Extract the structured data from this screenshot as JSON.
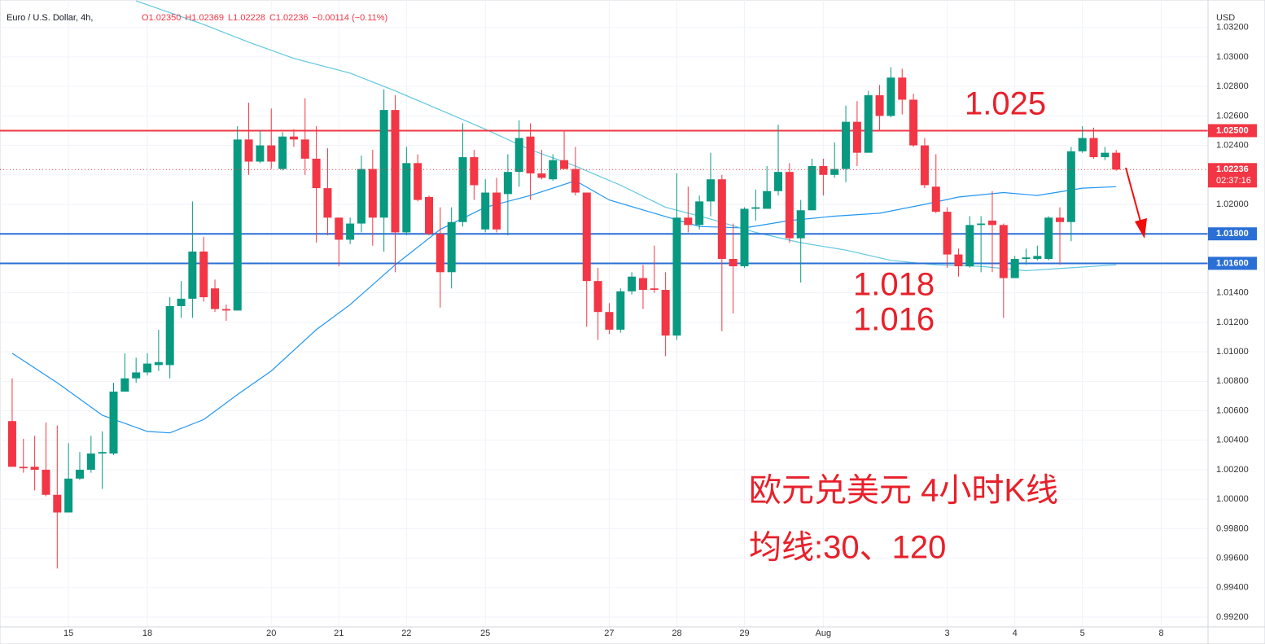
{
  "header": {
    "symbol": "Euro / U.S. Dollar, 4h,",
    "ohlc": [
      "O1.02350",
      "H1.02369",
      "L1.02228",
      "C1.02236",
      "−0.00114 (−0.11%)"
    ],
    "currency": "USD"
  },
  "annotations": [
    "1.025",
    "1.018",
    "1.016",
    "欧元兑美元 4小时K线",
    "均线:30、120"
  ],
  "chart_data": {
    "type": "candlestick",
    "up_color": "#089981",
    "down_color": "#f23645",
    "grid": true,
    "xlim": [
      -1.08,
      106.15
    ],
    "ylim": [
      0.99134,
      1.03342
    ],
    "xticks": [
      {
        "value": 5,
        "label": "15"
      },
      {
        "value": 12,
        "label": "18"
      },
      {
        "value": 23,
        "label": "20"
      },
      {
        "value": 29,
        "label": "21"
      },
      {
        "value": 35,
        "label": "22"
      },
      {
        "value": 42,
        "label": "25"
      },
      {
        "value": 53,
        "label": "27"
      },
      {
        "value": 59,
        "label": "28"
      },
      {
        "value": 65,
        "label": "29"
      },
      {
        "value": 72,
        "label": "Aug"
      },
      {
        "value": 83,
        "label": "3"
      },
      {
        "value": 89,
        "label": "4"
      },
      {
        "value": 95,
        "label": "5"
      },
      {
        "value": 102,
        "label": "8"
      }
    ],
    "yticks": [
      {
        "value": 0.992,
        "label": "0.99200"
      },
      {
        "value": 0.994,
        "label": "0.99400"
      },
      {
        "value": 0.996,
        "label": "0.99600"
      },
      {
        "value": 0.998,
        "label": "0.99800"
      },
      {
        "value": 1.0,
        "label": "1.00000"
      },
      {
        "value": 1.002,
        "label": "1.00200"
      },
      {
        "value": 1.004,
        "label": "1.00400"
      },
      {
        "value": 1.006,
        "label": "1.00600"
      },
      {
        "value": 1.008,
        "label": "1.00800"
      },
      {
        "value": 1.01,
        "label": "1.01000"
      },
      {
        "value": 1.012,
        "label": "1.01200"
      },
      {
        "value": 1.014,
        "label": "1.01400"
      },
      {
        "value": 1.016,
        "label": "1.01600"
      },
      {
        "value": 1.018,
        "label": "1.01800"
      },
      {
        "value": 1.02,
        "label": "1.02000"
      },
      {
        "value": 1.022,
        "label": "1.02200"
      },
      {
        "value": 1.024,
        "label": "1.02400"
      },
      {
        "value": 1.026,
        "label": "1.02600"
      },
      {
        "value": 1.028,
        "label": "1.02800"
      },
      {
        "value": 1.03,
        "label": "1.03000"
      },
      {
        "value": 1.032,
        "label": "1.03200"
      }
    ],
    "open": [
      1.0053,
      1.0022,
      1.0022,
      1.002,
      1.0003,
      0.9991,
      1.0014,
      1.002,
      1.0031,
      1.0031,
      1.0073,
      1.0082,
      1.0086,
      1.0091,
      1.0091,
      1.0131,
      1.0136,
      1.0168,
      1.0143,
      1.0129,
      1.0128,
      1.0244,
      1.0229,
      1.024,
      1.0224,
      1.0246,
      1.0244,
      1.0231,
      1.0211,
      1.0191,
      1.0176,
      1.0187,
      1.0224,
      1.0191,
      1.0264,
      1.0181,
      1.0228,
      1.0205,
      1.018,
      1.0154,
      1.0188,
      1.0232,
      1.0183,
      1.0208,
      1.0207,
      1.0222,
      1.0246,
      1.0221,
      1.0217,
      1.023,
      1.0224,
      1.0208,
      1.0148,
      1.0127,
      1.0115,
      1.0141,
      1.015,
      1.0143,
      1.0142,
      1.0111,
      1.0191,
      1.0186,
      1.0202,
      1.0217,
      1.0163,
      1.0158,
      1.0197,
      1.0197,
      1.0209,
      1.0222,
      1.0177,
      1.0196,
      1.0226,
      1.022,
      1.0224,
      1.0256,
      1.0235,
      1.0274,
      1.026,
      1.0286,
      1.0271,
      1.024,
      1.0212,
      1.0195,
      1.0166,
      1.0158,
      1.0186,
      1.0189,
      1.0186,
      1.015,
      1.0163,
      1.0163,
      1.0163,
      1.0191,
      1.0188,
      1.0236,
      1.0245,
      1.0232,
      1.0235
    ],
    "high": [
      1.0082,
      1.0041,
      1.0043,
      1.0052,
      1.005,
      1.0038,
      1.0032,
      1.0043,
      1.0046,
      1.0079,
      1.0099,
      1.0096,
      1.0099,
      1.0115,
      1.0137,
      1.0148,
      1.0202,
      1.0178,
      1.0149,
      1.0132,
      1.0253,
      1.0269,
      1.025,
      1.0265,
      1.0249,
      1.0251,
      1.0272,
      1.0253,
      1.0238,
      1.0191,
      1.0191,
      1.0233,
      1.0237,
      1.0278,
      1.0274,
      1.0239,
      1.0234,
      1.0206,
      1.0198,
      1.0198,
      1.0255,
      1.0237,
      1.0217,
      1.0218,
      1.0234,
      1.0257,
      1.0255,
      1.0237,
      1.0234,
      1.025,
      1.0239,
      1.0208,
      1.0157,
      1.0133,
      1.0143,
      1.0154,
      1.0159,
      1.0172,
      1.0154,
      1.0221,
      1.0212,
      1.0206,
      1.0235,
      1.022,
      1.0187,
      1.0198,
      1.021,
      1.0226,
      1.0254,
      1.0228,
      1.0203,
      1.0231,
      1.0231,
      1.0242,
      1.0267,
      1.027,
      1.0277,
      1.0281,
      1.0293,
      1.0292,
      1.0275,
      1.0245,
      1.0234,
      1.0198,
      1.017,
      1.0192,
      1.0192,
      1.0209,
      1.0187,
      1.0165,
      1.017,
      1.0172,
      1.0192,
      1.0198,
      1.0239,
      1.0253,
      1.0252,
      1.0239,
      1.02369
    ],
    "low": [
      1.0022,
      1.0018,
      1.0006,
      1.0002,
      0.9953,
      0.9991,
      1.0013,
      1.0018,
      1.0007,
      1.003,
      1.0073,
      1.0079,
      1.0084,
      1.0087,
      1.0082,
      1.0123,
      1.0123,
      1.0134,
      1.0127,
      1.0121,
      1.0128,
      1.022,
      1.0228,
      1.0224,
      1.0223,
      1.0239,
      1.022,
      1.0174,
      1.0179,
      1.0158,
      1.0173,
      1.0181,
      1.0172,
      1.0168,
      1.0154,
      1.0179,
      1.0202,
      1.0179,
      1.013,
      1.0143,
      1.0185,
      1.0203,
      1.0181,
      1.0181,
      1.0179,
      1.0212,
      1.0203,
      1.0217,
      1.0216,
      1.0224,
      1.0206,
      1.0117,
      1.0108,
      1.0112,
      1.0113,
      1.0139,
      1.0129,
      1.014,
      1.0097,
      1.0108,
      1.0181,
      1.0183,
      1.0192,
      1.0114,
      1.0126,
      1.0157,
      1.0189,
      1.0197,
      1.0206,
      1.0174,
      1.0147,
      1.0196,
      1.0206,
      1.0218,
      1.0215,
      1.0226,
      1.0235,
      1.025,
      1.0259,
      1.0261,
      1.0239,
      1.0211,
      1.0194,
      1.0157,
      1.0151,
      1.0157,
      1.0154,
      1.0154,
      1.0123,
      1.015,
      1.0159,
      1.0162,
      1.0162,
      1.0159,
      1.0175,
      1.0235,
      1.0231,
      1.023,
      1.02228
    ],
    "close": [
      1.0022,
      1.0021,
      1.002,
      1.0003,
      0.9991,
      1.0014,
      1.002,
      1.0031,
      1.0032,
      1.0073,
      1.0082,
      1.0086,
      1.0092,
      1.0093,
      1.0131,
      1.0136,
      1.0168,
      1.0137,
      1.0129,
      1.0128,
      1.0244,
      1.0229,
      1.024,
      1.0229,
      1.0246,
      1.0244,
      1.0231,
      1.0211,
      1.0191,
      1.0176,
      1.0187,
      1.0224,
      1.0191,
      1.0264,
      1.0181,
      1.0228,
      1.0203,
      1.018,
      1.0154,
      1.0188,
      1.0232,
      1.0213,
      1.0208,
      1.0183,
      1.0222,
      1.0245,
      1.0221,
      1.0218,
      1.023,
      1.0224,
      1.0208,
      1.0148,
      1.0127,
      1.0115,
      1.0141,
      1.0151,
      1.0142,
      1.0142,
      1.0111,
      1.0191,
      1.0186,
      1.0202,
      1.0217,
      1.0163,
      1.0158,
      1.0197,
      1.0198,
      1.0209,
      1.0222,
      1.0177,
      1.0196,
      1.0226,
      1.022,
      1.0224,
      1.0256,
      1.0235,
      1.0274,
      1.026,
      1.0286,
      1.0271,
      1.024,
      1.0213,
      1.0195,
      1.0166,
      1.0158,
      1.0186,
      1.0187,
      1.0186,
      1.015,
      1.0163,
      1.0164,
      1.0165,
      1.0191,
      1.0188,
      1.0236,
      1.0245,
      1.0232,
      1.0235,
      1.02236
    ],
    "moving_averages": [
      {
        "color": "#2196f3",
        "x": [
          0,
          4,
          8,
          12,
          14,
          17,
          20,
          23,
          27,
          30,
          34,
          38,
          42,
          46,
          50,
          53,
          57,
          61,
          65,
          69,
          73,
          77,
          81,
          84,
          88,
          91,
          95,
          98
        ],
        "values": [
          1.0099,
          1.0079,
          1.0057,
          1.0046,
          1.0045,
          1.0054,
          1.0071,
          1.0087,
          1.0115,
          1.0132,
          1.0159,
          1.0183,
          1.0198,
          1.0206,
          1.0216,
          1.0203,
          1.0194,
          1.0185,
          1.0184,
          1.0189,
          1.0192,
          1.0194,
          1.02,
          1.0205,
          1.0208,
          1.0206,
          1.0211,
          1.0212
        ]
      },
      {
        "color": "#5fc8e0",
        "x": [
          11,
          17,
          21,
          25,
          30,
          34,
          38,
          42,
          46,
          50,
          54,
          58,
          62,
          66,
          70,
          74,
          78,
          82,
          86,
          90,
          94,
          98
        ],
        "values": [
          1.0338,
          1.0322,
          1.031,
          1.0299,
          1.0289,
          1.0277,
          1.0264,
          1.0251,
          1.0237,
          1.0226,
          1.0213,
          1.0198,
          1.019,
          1.0181,
          1.0174,
          1.0169,
          1.0162,
          1.0159,
          1.0158,
          1.0155,
          1.0157,
          1.0159
        ]
      }
    ],
    "levels": [
      {
        "value": 1.025,
        "label": "1.02500",
        "color": "#f23645"
      },
      {
        "value": 1.018,
        "label": "1.01800",
        "color": "#2a6fd6"
      },
      {
        "value": 1.016,
        "label": "1.01600",
        "color": "#2a6fd6"
      }
    ],
    "last": {
      "value": 1.02236,
      "label": "1.02236",
      "countdown": "02:37:16",
      "color": "#f23645"
    }
  }
}
